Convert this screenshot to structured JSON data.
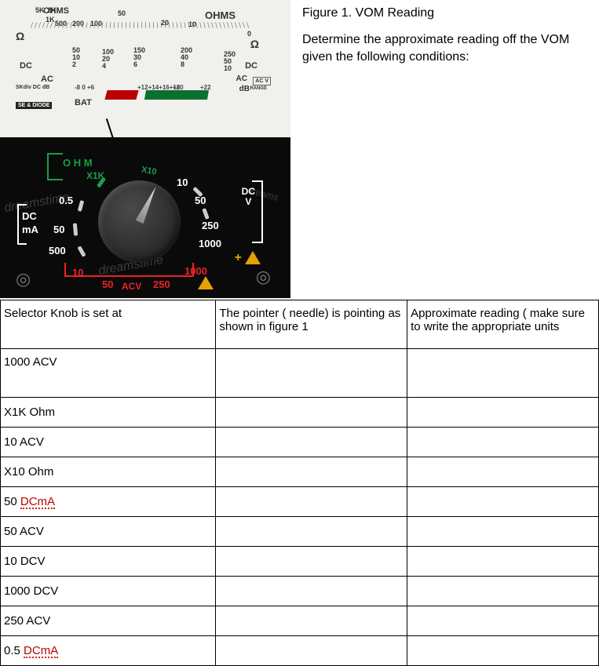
{
  "figure": {
    "title": "Figure 1. VOM Reading",
    "description": "Determine the approximate reading off the VOM given the following conditions:"
  },
  "gauge": {
    "ohms_label": "OHMS",
    "ohms_label_right": "OHMS",
    "ohm_scale": {
      "v5k": "5K",
      "v2k": "2K",
      "v1k": "1K",
      "v500": "500",
      "v200": "200",
      "v100": "100",
      "v50": "50",
      "v20": "20",
      "v10": "10",
      "v0": "0"
    },
    "omega": "Ω",
    "dc_label": "DC",
    "ac_label": "AC",
    "db_label": "dB",
    "bat_label": "BAT",
    "acv_box": "AC V",
    "range_box": "RANGE",
    "diode_box": "SE & DIODE",
    "sk_text": "SKdiv DC dB",
    "mid": {
      "a": "50\n10\n2",
      "b": "100\n20\n4",
      "c": "150\n30\n6",
      "d": "200\n40\n8",
      "e": "250\n50\n10"
    },
    "db_marks": {
      "a": "-8 0 +6",
      "b": "+12+14+16+18",
      "c": "+20",
      "d": "+22"
    }
  },
  "dial": {
    "ohm": "O H M",
    "x1k": "X1K",
    "x10": "X10",
    "v10": "10",
    "v50": "50",
    "v250": "250",
    "v1000": "1000",
    "v05": "0.5",
    "dc": "DC",
    "ma": "mA",
    "v50b": "50",
    "v500": "500",
    "r10": "10",
    "r50": "50",
    "r250": "250",
    "r1000": "1000",
    "acv": "ACV",
    "dcv": "DC\nV",
    "plus": "+"
  },
  "table": {
    "headers": {
      "c1": "Selector Knob is set at",
      "c2": "The pointer ( needle) is pointing as shown in figure 1",
      "c3": "Approximate reading ( make sure to write the appropriate units"
    },
    "rows": [
      {
        "label": "1000 ACV",
        "squiggle": false
      },
      {
        "label": "X1K Ohm",
        "squiggle": false
      },
      {
        "label": "10 ACV",
        "squiggle": false
      },
      {
        "label": "X10 Ohm",
        "squiggle": false
      },
      {
        "label_pre": "50 ",
        "label_sq": "DCmA",
        "squiggle": true
      },
      {
        "label": "50 ACV",
        "squiggle": false
      },
      {
        "label": "10 DCV",
        "squiggle": false
      },
      {
        "label": "1000 DCV",
        "squiggle": false
      },
      {
        "label": "250 ACV",
        "squiggle": false
      },
      {
        "label_pre": "0.5 ",
        "label_sq": "DCmA",
        "squiggle": true
      }
    ]
  }
}
